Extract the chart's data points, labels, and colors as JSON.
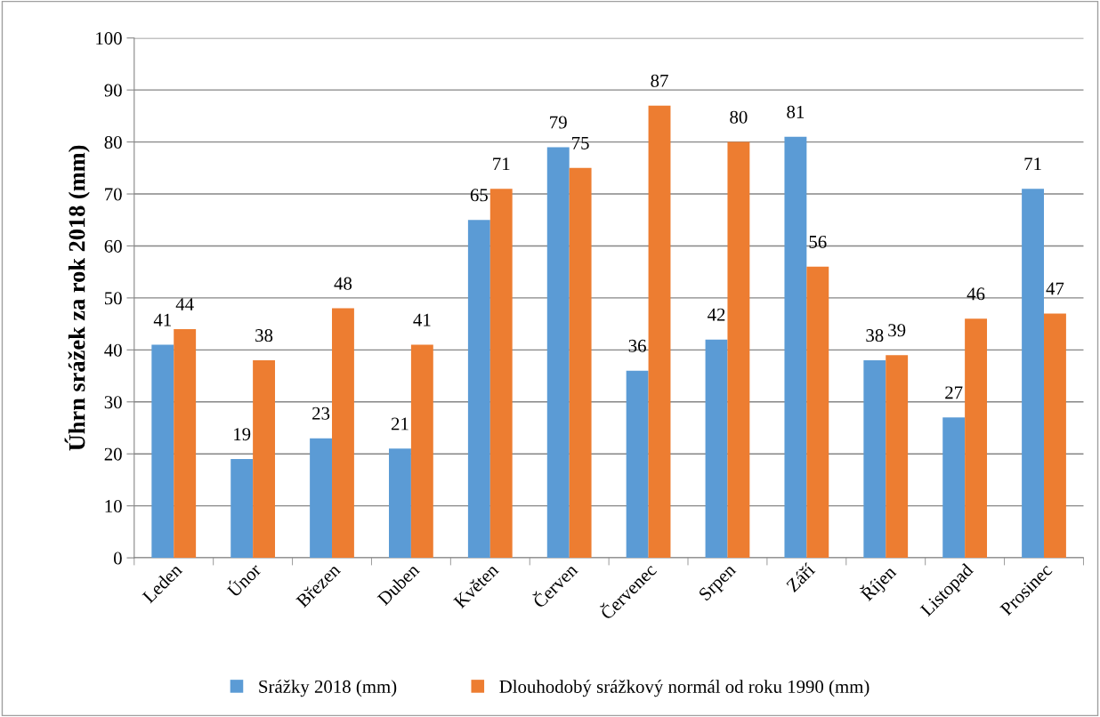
{
  "chart_data": {
    "type": "bar",
    "ylabel": "Úhrn srážek za rok 2018 (mm)",
    "categories": [
      "Leden",
      "Únor",
      "Březen",
      "Duben",
      "Květen",
      "Červen",
      "Červenec",
      "Srpen",
      "Září",
      "Říjen",
      "Listopad",
      "Prosinec"
    ],
    "series": [
      {
        "name": "Srážky 2018 (mm)",
        "color": "#5b9bd5",
        "values": [
          41,
          19,
          23,
          21,
          65,
          79,
          36,
          42,
          81,
          38,
          27,
          71
        ]
      },
      {
        "name": "Dlouhodobý srážkový normál od roku 1990 (mm)",
        "color": "#ed7d31",
        "values": [
          44,
          38,
          48,
          41,
          71,
          75,
          87,
          80,
          56,
          39,
          46,
          47
        ]
      }
    ],
    "ylim": [
      0,
      100
    ],
    "yticks": [
      0,
      10,
      20,
      30,
      40,
      50,
      60,
      70,
      80,
      90,
      100
    ],
    "grid": "y",
    "legend": "bottom",
    "data_labels": true
  }
}
